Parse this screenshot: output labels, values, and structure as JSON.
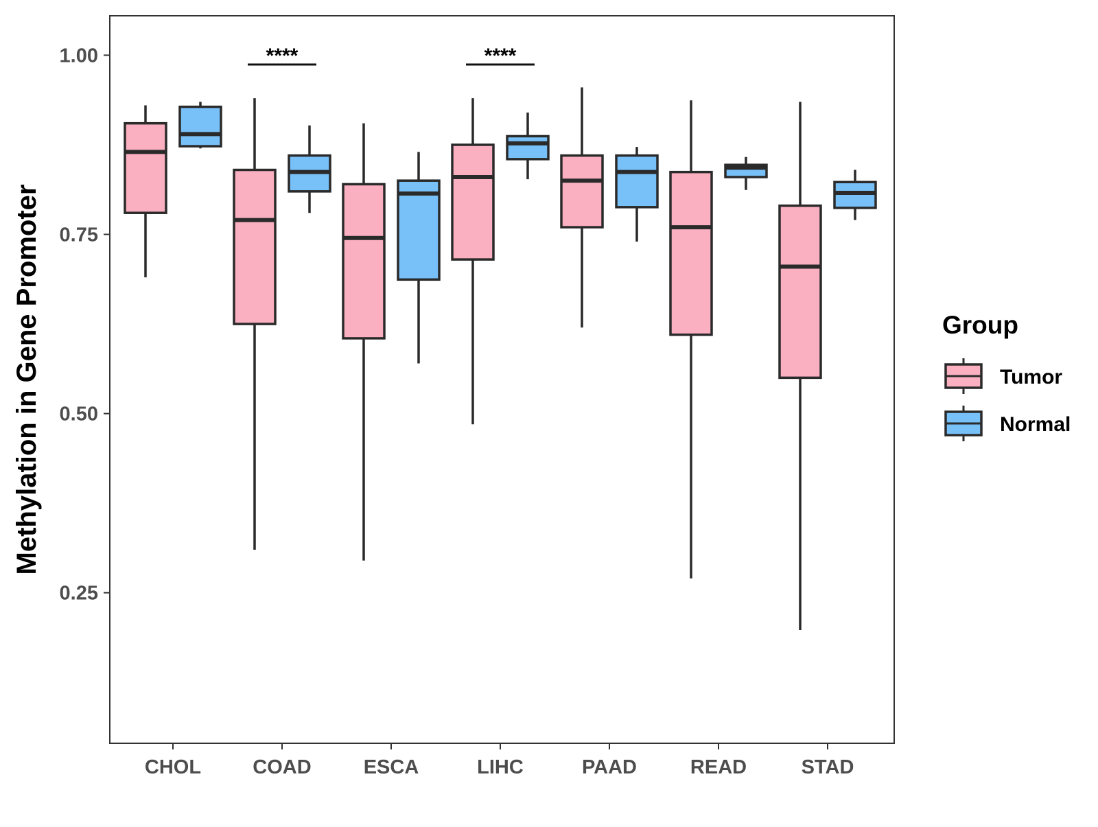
{
  "chart_data": {
    "type": "boxplot",
    "title": "",
    "xlabel": "",
    "ylabel": "Methylation in Gene Promoter",
    "ylim": [
      0.04,
      1.055
    ],
    "yticks": [
      0.25,
      0.5,
      0.75,
      1.0
    ],
    "ytick_labels": [
      "0.25",
      "0.50",
      "0.75",
      "1.00"
    ],
    "categories": [
      "CHOL",
      "COAD",
      "ESCA",
      "LIHC",
      "PAAD",
      "READ",
      "STAD"
    ],
    "grid": false,
    "legend": {
      "title": "Group",
      "position": "right",
      "entries": [
        {
          "name": "Tumor",
          "color": "#FBB0C2"
        },
        {
          "name": "Normal",
          "color": "#78C0F8"
        }
      ]
    },
    "series": [
      {
        "name": "Tumor",
        "color": "#FBB0C2",
        "boxes": [
          {
            "category": "CHOL",
            "min": 0.69,
            "q1": 0.78,
            "median": 0.865,
            "q3": 0.905,
            "max": 0.93
          },
          {
            "category": "COAD",
            "min": 0.31,
            "q1": 0.625,
            "median": 0.77,
            "q3": 0.84,
            "max": 0.94
          },
          {
            "category": "ESCA",
            "min": 0.295,
            "q1": 0.605,
            "median": 0.745,
            "q3": 0.82,
            "max": 0.905
          },
          {
            "category": "LIHC",
            "min": 0.485,
            "q1": 0.715,
            "median": 0.83,
            "q3": 0.875,
            "max": 0.94
          },
          {
            "category": "PAAD",
            "min": 0.62,
            "q1": 0.76,
            "median": 0.825,
            "q3": 0.86,
            "max": 0.955
          },
          {
            "category": "READ",
            "min": 0.27,
            "q1": 0.61,
            "median": 0.76,
            "q3": 0.837,
            "max": 0.937
          },
          {
            "category": "STAD",
            "min": 0.198,
            "q1": 0.55,
            "median": 0.705,
            "q3": 0.79,
            "max": 0.935
          }
        ]
      },
      {
        "name": "Normal",
        "color": "#78C0F8",
        "boxes": [
          {
            "category": "CHOL",
            "min": 0.87,
            "q1": 0.873,
            "median": 0.89,
            "q3": 0.928,
            "max": 0.935
          },
          {
            "category": "COAD",
            "min": 0.78,
            "q1": 0.81,
            "median": 0.837,
            "q3": 0.86,
            "max": 0.902
          },
          {
            "category": "ESCA",
            "min": 0.57,
            "q1": 0.687,
            "median": 0.807,
            "q3": 0.825,
            "max": 0.865
          },
          {
            "category": "LIHC",
            "min": 0.827,
            "q1": 0.855,
            "median": 0.877,
            "q3": 0.887,
            "max": 0.92
          },
          {
            "category": "PAAD",
            "min": 0.74,
            "q1": 0.788,
            "median": 0.837,
            "q3": 0.86,
            "max": 0.872
          },
          {
            "category": "READ",
            "min": 0.812,
            "q1": 0.83,
            "median": 0.843,
            "q3": 0.847,
            "max": 0.858
          },
          {
            "category": "STAD",
            "min": 0.77,
            "q1": 0.787,
            "median": 0.808,
            "q3": 0.823,
            "max": 0.84
          }
        ]
      }
    ],
    "annotations": [
      {
        "category": "COAD",
        "label": "****",
        "y": 0.987
      },
      {
        "category": "LIHC",
        "label": "****",
        "y": 0.987
      }
    ]
  }
}
